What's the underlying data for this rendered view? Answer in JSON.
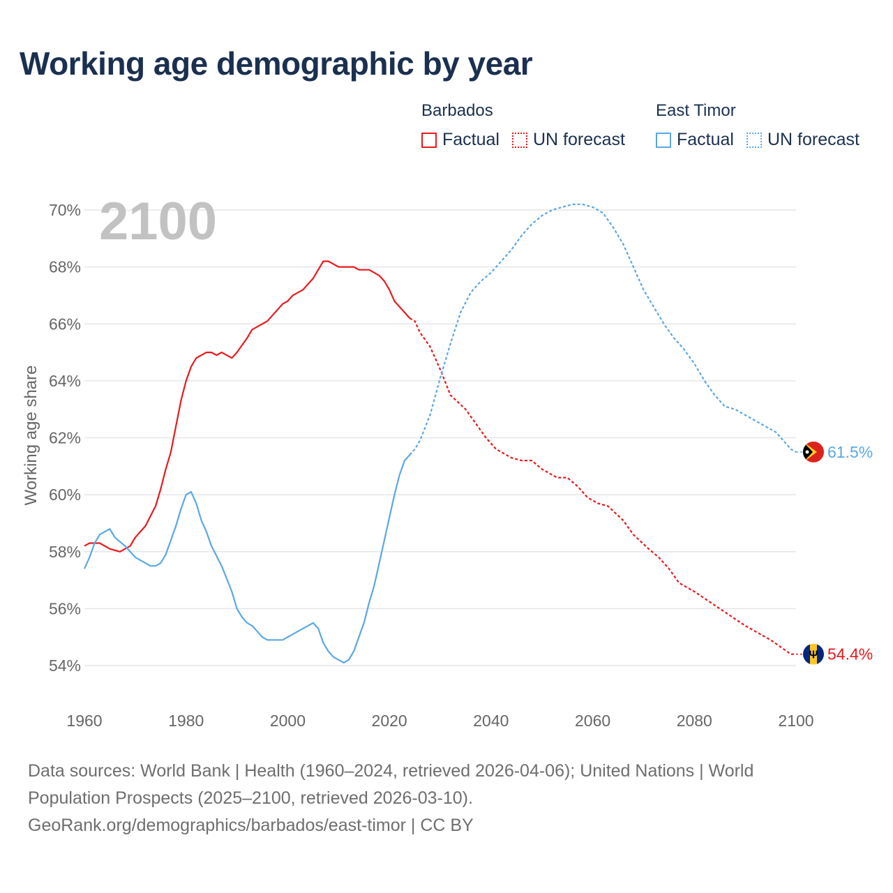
{
  "title": "Working age demographic by year",
  "legend": [
    {
      "group": "Barbados",
      "factual_label": "Factual",
      "forecast_label": "UN forecast",
      "color": "#e8191c"
    },
    {
      "group": "East Timor",
      "factual_label": "Factual",
      "forecast_label": "UN forecast",
      "color": "#5aa7e6"
    }
  ],
  "source": {
    "line1": "Data sources: World Bank | Health (1960–2024, retrieved 2026-04-06); United Nations | World",
    "line2": "Population Prospects (2025–2100, retrieved 2026-03-10).",
    "line3": "GeoRank.org/demographics/barbados/east-timor | CC BY"
  },
  "chart_data": {
    "type": "line",
    "year_label": "2100",
    "ylabel": "Working age share",
    "xlim": [
      1960,
      2100
    ],
    "ylim": [
      53,
      71
    ],
    "x_ticks": [
      1960,
      1980,
      2000,
      2020,
      2040,
      2060,
      2080,
      2100
    ],
    "y_ticks": [
      {
        "value": 54,
        "label": "54%"
      },
      {
        "value": 56,
        "label": "56%"
      },
      {
        "value": 58,
        "label": "58%"
      },
      {
        "value": 60,
        "label": "60%"
      },
      {
        "value": 62,
        "label": "62%"
      },
      {
        "value": 64,
        "label": "64%"
      },
      {
        "value": 66,
        "label": "66%"
      },
      {
        "value": 68,
        "label": "68%"
      },
      {
        "value": 70,
        "label": "70%"
      }
    ],
    "factual_end_year": 2024,
    "series": [
      {
        "name": "Barbados",
        "color": "#e8191c",
        "end_label": "54.4%",
        "flag": "barbados-flag",
        "points": [
          [
            1960,
            58.2
          ],
          [
            1961,
            58.3
          ],
          [
            1963,
            58.3
          ],
          [
            1965,
            58.1
          ],
          [
            1967,
            58.0
          ],
          [
            1969,
            58.2
          ],
          [
            1970,
            58.5
          ],
          [
            1972,
            58.9
          ],
          [
            1974,
            59.6
          ],
          [
            1975,
            60.2
          ],
          [
            1976,
            60.9
          ],
          [
            1977,
            61.5
          ],
          [
            1978,
            62.4
          ],
          [
            1979,
            63.3
          ],
          [
            1980,
            64.0
          ],
          [
            1981,
            64.5
          ],
          [
            1982,
            64.8
          ],
          [
            1984,
            65.0
          ],
          [
            1985,
            65.0
          ],
          [
            1986,
            64.9
          ],
          [
            1987,
            65.0
          ],
          [
            1989,
            64.8
          ],
          [
            1990,
            65.0
          ],
          [
            1992,
            65.5
          ],
          [
            1993,
            65.8
          ],
          [
            1995,
            66.0
          ],
          [
            1996,
            66.1
          ],
          [
            1998,
            66.5
          ],
          [
            1999,
            66.7
          ],
          [
            2000,
            66.8
          ],
          [
            2001,
            67.0
          ],
          [
            2003,
            67.2
          ],
          [
            2005,
            67.6
          ],
          [
            2006,
            67.9
          ],
          [
            2007,
            68.2
          ],
          [
            2008,
            68.2
          ],
          [
            2010,
            68.0
          ],
          [
            2013,
            68.0
          ],
          [
            2014,
            67.9
          ],
          [
            2016,
            67.9
          ],
          [
            2018,
            67.7
          ],
          [
            2019,
            67.5
          ],
          [
            2020,
            67.2
          ],
          [
            2021,
            66.8
          ],
          [
            2022,
            66.6
          ],
          [
            2023,
            66.4
          ],
          [
            2024,
            66.2
          ],
          [
            2025,
            66.1
          ],
          [
            2026,
            65.7
          ],
          [
            2028,
            65.2
          ],
          [
            2030,
            64.4
          ],
          [
            2032,
            63.5
          ],
          [
            2035,
            63.0
          ],
          [
            2037,
            62.5
          ],
          [
            2039,
            62.0
          ],
          [
            2041,
            61.6
          ],
          [
            2044,
            61.3
          ],
          [
            2046,
            61.2
          ],
          [
            2048,
            61.2
          ],
          [
            2050,
            60.9
          ],
          [
            2053,
            60.6
          ],
          [
            2055,
            60.6
          ],
          [
            2057,
            60.3
          ],
          [
            2059,
            59.9
          ],
          [
            2061,
            59.7
          ],
          [
            2063,
            59.6
          ],
          [
            2066,
            59.1
          ],
          [
            2068,
            58.6
          ],
          [
            2071,
            58.1
          ],
          [
            2073,
            57.8
          ],
          [
            2075,
            57.4
          ],
          [
            2077,
            56.9
          ],
          [
            2080,
            56.6
          ],
          [
            2085,
            56.0
          ],
          [
            2090,
            55.4
          ],
          [
            2095,
            54.9
          ],
          [
            2099,
            54.4
          ],
          [
            2100,
            54.4
          ]
        ]
      },
      {
        "name": "East Timor",
        "color": "#5aa7e6",
        "end_label": "61.5%",
        "flag": "east-timor-flag",
        "points": [
          [
            1960,
            57.4
          ],
          [
            1961,
            57.8
          ],
          [
            1962,
            58.3
          ],
          [
            1963,
            58.6
          ],
          [
            1964,
            58.7
          ],
          [
            1965,
            58.8
          ],
          [
            1966,
            58.5
          ],
          [
            1968,
            58.2
          ],
          [
            1970,
            57.8
          ],
          [
            1972,
            57.6
          ],
          [
            1973,
            57.5
          ],
          [
            1974,
            57.5
          ],
          [
            1975,
            57.6
          ],
          [
            1976,
            57.9
          ],
          [
            1977,
            58.4
          ],
          [
            1978,
            58.9
          ],
          [
            1979,
            59.5
          ],
          [
            1980,
            60.0
          ],
          [
            1981,
            60.1
          ],
          [
            1982,
            59.7
          ],
          [
            1983,
            59.1
          ],
          [
            1984,
            58.7
          ],
          [
            1985,
            58.2
          ],
          [
            1987,
            57.5
          ],
          [
            1989,
            56.6
          ],
          [
            1990,
            56.0
          ],
          [
            1991,
            55.7
          ],
          [
            1992,
            55.5
          ],
          [
            1993,
            55.4
          ],
          [
            1995,
            55.0
          ],
          [
            1996,
            54.9
          ],
          [
            1998,
            54.9
          ],
          [
            1999,
            54.9
          ],
          [
            2001,
            55.1
          ],
          [
            2003,
            55.3
          ],
          [
            2005,
            55.5
          ],
          [
            2006,
            55.3
          ],
          [
            2007,
            54.8
          ],
          [
            2008,
            54.5
          ],
          [
            2009,
            54.3
          ],
          [
            2010,
            54.2
          ],
          [
            2011,
            54.1
          ],
          [
            2012,
            54.2
          ],
          [
            2013,
            54.5
          ],
          [
            2014,
            55.0
          ],
          [
            2015,
            55.5
          ],
          [
            2016,
            56.2
          ],
          [
            2017,
            56.8
          ],
          [
            2018,
            57.6
          ],
          [
            2019,
            58.4
          ],
          [
            2020,
            59.2
          ],
          [
            2021,
            60.0
          ],
          [
            2022,
            60.7
          ],
          [
            2023,
            61.2
          ],
          [
            2024,
            61.4
          ],
          [
            2025,
            61.6
          ],
          [
            2026,
            61.9
          ],
          [
            2028,
            62.8
          ],
          [
            2030,
            64.1
          ],
          [
            2032,
            65.3
          ],
          [
            2034,
            66.4
          ],
          [
            2036,
            67.1
          ],
          [
            2038,
            67.5
          ],
          [
            2040,
            67.8
          ],
          [
            2042,
            68.2
          ],
          [
            2044,
            68.6
          ],
          [
            2046,
            69.1
          ],
          [
            2048,
            69.5
          ],
          [
            2050,
            69.8
          ],
          [
            2052,
            70.0
          ],
          [
            2054,
            70.1
          ],
          [
            2056,
            70.2
          ],
          [
            2058,
            70.2
          ],
          [
            2060,
            70.1
          ],
          [
            2062,
            69.9
          ],
          [
            2064,
            69.4
          ],
          [
            2066,
            68.8
          ],
          [
            2068,
            68.0
          ],
          [
            2070,
            67.2
          ],
          [
            2072,
            66.6
          ],
          [
            2074,
            66.0
          ],
          [
            2076,
            65.5
          ],
          [
            2078,
            65.1
          ],
          [
            2080,
            64.6
          ],
          [
            2082,
            64.0
          ],
          [
            2084,
            63.5
          ],
          [
            2086,
            63.1
          ],
          [
            2088,
            63.0
          ],
          [
            2090,
            62.8
          ],
          [
            2092,
            62.6
          ],
          [
            2094,
            62.4
          ],
          [
            2096,
            62.2
          ],
          [
            2098,
            61.8
          ],
          [
            2099,
            61.6
          ],
          [
            2100,
            61.5
          ]
        ]
      }
    ]
  }
}
